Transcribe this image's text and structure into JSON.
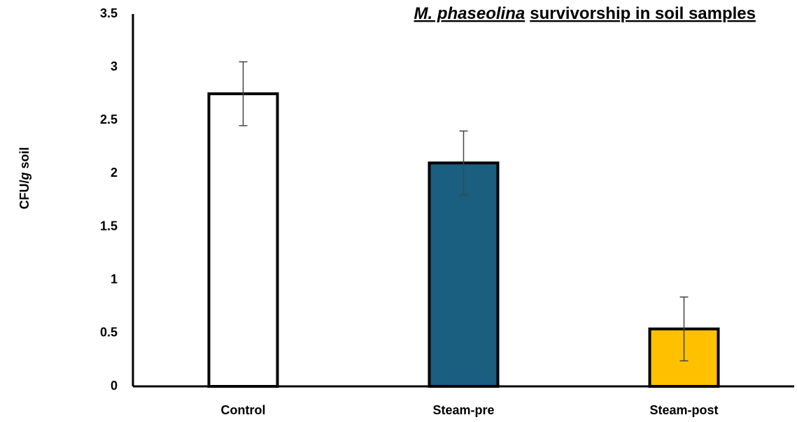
{
  "chart_data": {
    "type": "bar",
    "title": [
      "M. phaseolina",
      "survivorship in soil samples"
    ],
    "y_label": [
      "CFU/",
      "g",
      "soil"
    ],
    "categories": [
      "Control",
      "Steam-pre",
      "Steam-post"
    ],
    "values": [
      2.75,
      2.1,
      0.54
    ],
    "errors": [
      0.3,
      0.3,
      0.3
    ],
    "colors": [
      "#ffffff",
      "#1a5e80",
      "#ffc000"
    ],
    "ylim": [
      0,
      3.5
    ],
    "yticks": [
      0,
      0.5,
      1,
      1.5,
      2,
      2.5,
      3,
      3.5
    ],
    "grid": false
  }
}
